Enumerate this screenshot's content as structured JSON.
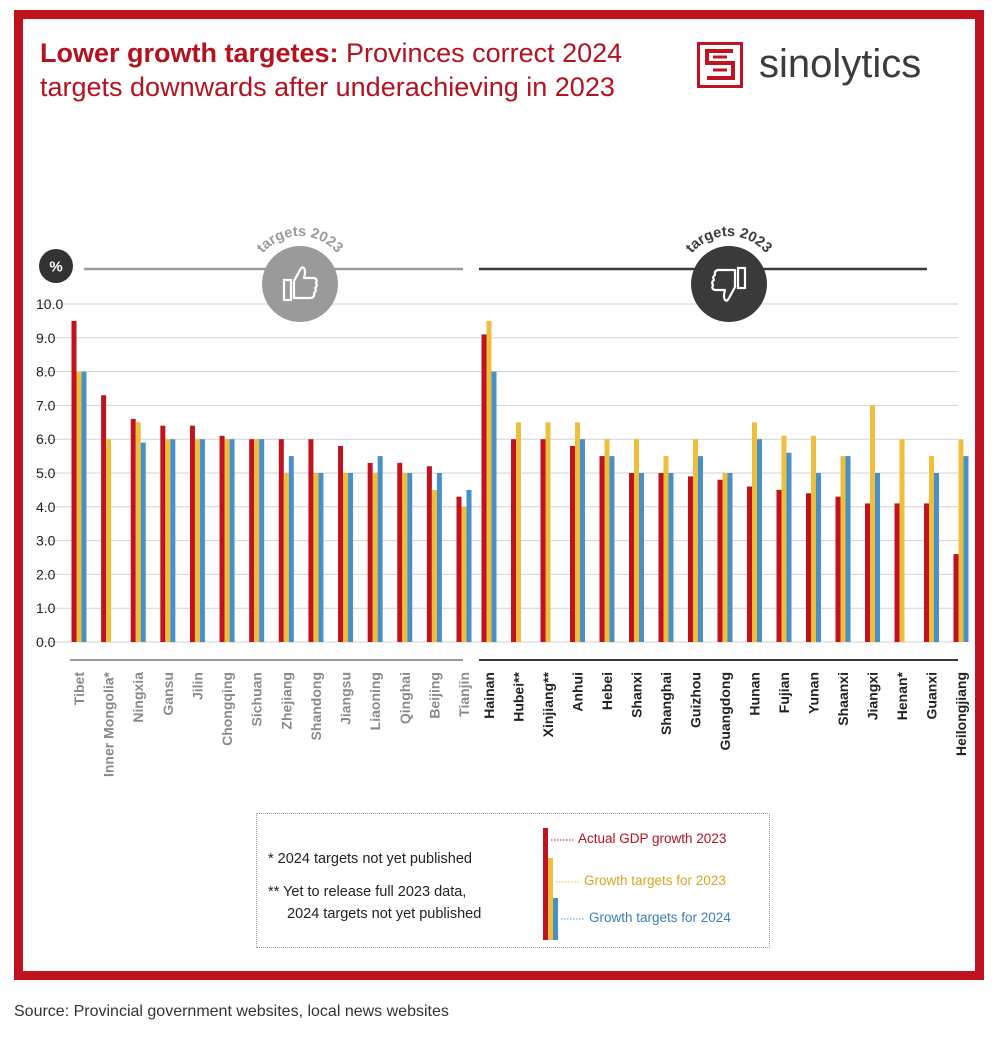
{
  "header": {
    "title_bold": "Lower growth targetes:",
    "title_rest": " Provinces correct 2024 targets downwards after underachieving in 2023",
    "logo_text": "sinolytics"
  },
  "source": "Source: Provincial government websites, local news websites",
  "notes": {
    "note1": "* 2024 targets not yet published",
    "note2_line1": "** Yet to release full 2023 data,",
    "note2_line2": "2024 targets not yet published"
  },
  "colors": {
    "actual": "#c1121f",
    "target2023": "#eebf3c",
    "target2024": "#4a90c8",
    "frame": "#c1121f"
  },
  "chart_data": {
    "type": "bar",
    "unit_label": "%",
    "ylim": [
      0,
      10
    ],
    "yticks": [
      "0.0",
      "1.0",
      "2.0",
      "3.0",
      "4.0",
      "5.0",
      "6.0",
      "7.0",
      "8.0",
      "9.0",
      "10.0"
    ],
    "groups": [
      {
        "label": "targets 2023",
        "icon": "thumbs-up-icon",
        "tone": "#9a9a9a"
      },
      {
        "label": "targets 2023",
        "icon": "thumbs-down-icon",
        "tone": "#3a3a3a"
      }
    ],
    "series": [
      {
        "name": "Actual GDP growth 2023",
        "color": "#c1121f"
      },
      {
        "name": "Growth targets for 2023",
        "color": "#eebf3c"
      },
      {
        "name": "Growth targets for 2024",
        "color": "#4a90c8"
      }
    ],
    "categories": [
      {
        "name": "Tibet",
        "group": 0,
        "values": [
          9.5,
          8.0,
          8.0
        ]
      },
      {
        "name": "Inner Mongolia*",
        "group": 0,
        "values": [
          7.3,
          6.0,
          null
        ]
      },
      {
        "name": "Ningxia",
        "group": 0,
        "values": [
          6.6,
          6.5,
          5.9
        ]
      },
      {
        "name": "Gansu",
        "group": 0,
        "values": [
          6.4,
          6.0,
          6.0
        ]
      },
      {
        "name": "Jilin",
        "group": 0,
        "values": [
          6.4,
          6.0,
          6.0
        ]
      },
      {
        "name": "Chongqing",
        "group": 0,
        "values": [
          6.1,
          6.0,
          6.0
        ]
      },
      {
        "name": "Sichuan",
        "group": 0,
        "values": [
          6.0,
          6.0,
          6.0
        ]
      },
      {
        "name": "Zhejiang",
        "group": 0,
        "values": [
          6.0,
          5.0,
          5.5
        ]
      },
      {
        "name": "Shandong",
        "group": 0,
        "values": [
          6.0,
          5.0,
          5.0
        ]
      },
      {
        "name": "Jiangsu",
        "group": 0,
        "values": [
          5.8,
          5.0,
          5.0
        ]
      },
      {
        "name": "Liaoning",
        "group": 0,
        "values": [
          5.3,
          5.0,
          5.5
        ]
      },
      {
        "name": "Qinghai",
        "group": 0,
        "values": [
          5.3,
          5.0,
          5.0
        ]
      },
      {
        "name": "Beijing",
        "group": 0,
        "values": [
          5.2,
          4.5,
          5.0
        ]
      },
      {
        "name": "Tianjin",
        "group": 0,
        "values": [
          4.3,
          4.0,
          4.5
        ]
      },
      {
        "name": "Hainan",
        "group": 1,
        "values": [
          9.1,
          9.5,
          8.0
        ]
      },
      {
        "name": "Hubei**",
        "group": 1,
        "values": [
          6.0,
          6.5,
          null
        ]
      },
      {
        "name": "Xinjiang**",
        "group": 1,
        "values": [
          6.0,
          6.5,
          null
        ]
      },
      {
        "name": "Anhui",
        "group": 1,
        "values": [
          5.8,
          6.5,
          6.0
        ]
      },
      {
        "name": "Hebei",
        "group": 1,
        "values": [
          5.5,
          6.0,
          5.5
        ]
      },
      {
        "name": "Shanxi",
        "group": 1,
        "values": [
          5.0,
          6.0,
          5.0
        ]
      },
      {
        "name": "Shanghai",
        "group": 1,
        "values": [
          5.0,
          5.5,
          5.0
        ]
      },
      {
        "name": "Guizhou",
        "group": 1,
        "values": [
          4.9,
          6.0,
          5.5
        ]
      },
      {
        "name": "Guangdong",
        "group": 1,
        "values": [
          4.8,
          5.0,
          5.0
        ]
      },
      {
        "name": "Hunan",
        "group": 1,
        "values": [
          4.6,
          6.5,
          6.0
        ]
      },
      {
        "name": "Fujian",
        "group": 1,
        "values": [
          4.5,
          6.1,
          5.6
        ]
      },
      {
        "name": "Yunan",
        "group": 1,
        "values": [
          4.4,
          6.1,
          5.0
        ]
      },
      {
        "name": "Shaanxi",
        "group": 1,
        "values": [
          4.3,
          5.5,
          5.5
        ]
      },
      {
        "name": "Jiangxi",
        "group": 1,
        "values": [
          4.1,
          7.0,
          5.0
        ]
      },
      {
        "name": "Henan*",
        "group": 1,
        "values": [
          4.1,
          6.0,
          null
        ]
      },
      {
        "name": "Guanxi",
        "group": 1,
        "values": [
          4.1,
          5.5,
          5.0
        ]
      },
      {
        "name": "Heilongjiang",
        "group": 1,
        "values": [
          2.6,
          6.0,
          5.5
        ]
      }
    ],
    "grid": true,
    "legend": "bottom-center"
  }
}
